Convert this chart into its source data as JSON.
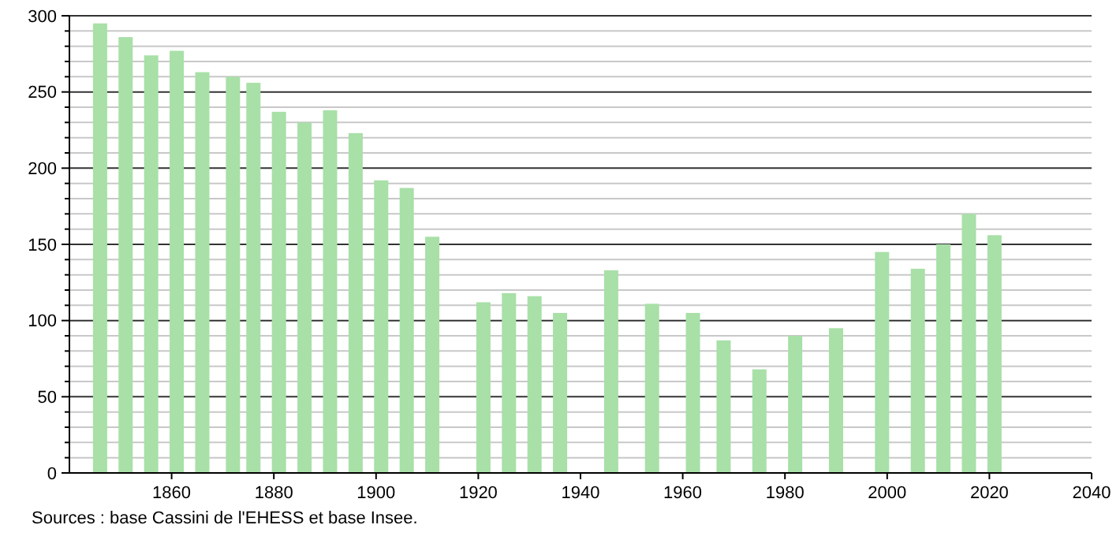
{
  "chart_data": {
    "type": "bar",
    "x": [
      1846,
      1851,
      1856,
      1861,
      1866,
      1872,
      1876,
      1881,
      1886,
      1891,
      1896,
      1901,
      1906,
      1911,
      1921,
      1926,
      1931,
      1936,
      1946,
      1954,
      1962,
      1968,
      1975,
      1982,
      1990,
      1999,
      2006,
      2011,
      2016,
      2021
    ],
    "values": [
      295,
      286,
      274,
      277,
      263,
      260,
      256,
      237,
      230,
      238,
      223,
      192,
      187,
      155,
      112,
      118,
      116,
      105,
      133,
      111,
      105,
      87,
      68,
      90,
      95,
      145,
      134,
      150,
      170,
      156
    ],
    "color": "#a8e0a8",
    "xlim": [
      1840,
      2040
    ],
    "xticks": [
      1860,
      1880,
      1900,
      1920,
      1940,
      1960,
      1980,
      2000,
      2020,
      2040
    ],
    "ylim": [
      0,
      300
    ],
    "yticks": [
      0,
      {
        "value": 10,
        "label": null
      },
      {
        "value": 20,
        "label": null
      },
      {
        "value": 30,
        "label": null
      },
      {
        "value": 40,
        "label": null
      },
      50,
      {
        "value": 60,
        "label": null
      },
      {
        "value": 70,
        "label": null
      },
      {
        "value": 80,
        "label": null
      },
      {
        "value": 90,
        "label": null
      },
      100,
      {
        "value": 110,
        "label": null
      },
      {
        "value": 120,
        "label": null
      },
      {
        "value": 130,
        "label": null
      },
      {
        "value": 140,
        "label": null
      },
      150,
      {
        "value": 160,
        "label": null
      },
      {
        "value": 170,
        "label": null
      },
      {
        "value": 180,
        "label": null
      },
      {
        "value": 190,
        "label": null
      },
      200,
      {
        "value": 210,
        "label": null
      },
      {
        "value": 220,
        "label": null
      },
      {
        "value": 230,
        "label": null
      },
      {
        "value": 240,
        "label": null
      },
      250,
      {
        "value": 260,
        "label": null
      },
      {
        "value": 270,
        "label": null
      },
      {
        "value": 280,
        "label": null
      },
      {
        "value": 290,
        "label": null
      },
      300
    ],
    "grid": "y",
    "annotations": [
      "Sources : base Cassini de l'EHESS et base Insee."
    ]
  }
}
